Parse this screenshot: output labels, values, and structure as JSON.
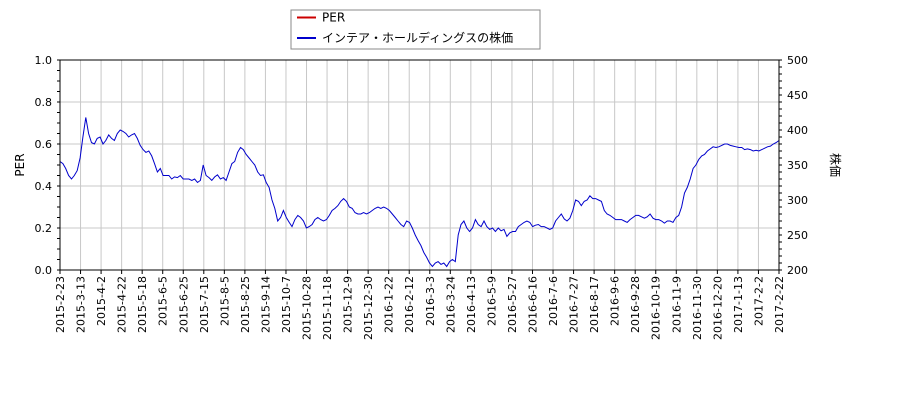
{
  "chart_data": {
    "type": "line",
    "colors": {
      "per": "#cc0000",
      "price": "#0000cc"
    },
    "legend_placement": "top-center",
    "grid": true,
    "y_left": {
      "label": "PER",
      "range": [
        0.0,
        1.0
      ],
      "ticks": [
        "0.0",
        "0.2",
        "0.4",
        "0.6",
        "0.8",
        "1.0"
      ]
    },
    "y_right": {
      "label": "株価",
      "range": [
        200,
        500
      ],
      "ticks": [
        "200",
        "250",
        "300",
        "350",
        "400",
        "450",
        "500"
      ]
    },
    "x_ticks": [
      "2015-2-23",
      "2015-3-13",
      "2015-4-2",
      "2015-4-22",
      "2015-5-18",
      "2015-6-5",
      "2015-6-25",
      "2015-7-15",
      "2015-8-5",
      "2015-8-25",
      "2015-9-14",
      "2015-10-7",
      "2015-10-28",
      "2015-11-18",
      "2015-12-9",
      "2015-12-30",
      "2016-1-22",
      "2016-2-12",
      "2016-3-3",
      "2016-3-24",
      "2016-4-13",
      "2016-5-9",
      "2016-5-27",
      "2016-6-16",
      "2016-7-6",
      "2016-7-27",
      "2016-8-17",
      "2016-9-6",
      "2016-9-28",
      "2016-10-19",
      "2016-11-9",
      "2016-11-30",
      "2016-12-20",
      "2017-1-13",
      "2017-2-2",
      "2017-2-22"
    ],
    "series": [
      {
        "name": "PER",
        "axis": "left",
        "values": []
      },
      {
        "name": "インテア・ホールディングスの株価",
        "axis": "right",
        "values": [
          355,
          352,
          345,
          335,
          330,
          335,
          342,
          360,
          390,
          418,
          395,
          382,
          380,
          388,
          390,
          380,
          385,
          393,
          388,
          385,
          395,
          400,
          398,
          395,
          390,
          393,
          395,
          388,
          378,
          372,
          368,
          370,
          363,
          352,
          340,
          345,
          335,
          335,
          335,
          330,
          333,
          332,
          335,
          330,
          330,
          330,
          328,
          330,
          325,
          328,
          350,
          335,
          332,
          328,
          333,
          336,
          330,
          332,
          328,
          340,
          352,
          355,
          368,
          375,
          372,
          365,
          360,
          355,
          350,
          340,
          335,
          336,
          325,
          318,
          300,
          288,
          270,
          275,
          285,
          275,
          268,
          262,
          272,
          278,
          275,
          270,
          260,
          262,
          265,
          272,
          275,
          272,
          270,
          272,
          278,
          285,
          288,
          292,
          298,
          302,
          298,
          290,
          288,
          282,
          280,
          280,
          282,
          280,
          282,
          285,
          288,
          290,
          288,
          290,
          288,
          285,
          280,
          275,
          270,
          265,
          262,
          270,
          268,
          260,
          250,
          242,
          235,
          225,
          218,
          210,
          205,
          210,
          212,
          208,
          210,
          205,
          212,
          215,
          212,
          250,
          265,
          270,
          260,
          255,
          260,
          272,
          265,
          262,
          270,
          262,
          258,
          260,
          255,
          260,
          256,
          258,
          248,
          253,
          255,
          255,
          262,
          265,
          268,
          270,
          268,
          262,
          264,
          265,
          262,
          262,
          260,
          258,
          260,
          270,
          275,
          280,
          273,
          270,
          274,
          285,
          300,
          298,
          292,
          298,
          300,
          306,
          302,
          302,
          300,
          298,
          285,
          280,
          278,
          275,
          272,
          272,
          272,
          270,
          268,
          272,
          275,
          278,
          278,
          276,
          274,
          276,
          280,
          274,
          272,
          272,
          270,
          267,
          270,
          270,
          268,
          275,
          278,
          290,
          310,
          318,
          330,
          345,
          350,
          358,
          363,
          365,
          370,
          373,
          376,
          375,
          376,
          378,
          380,
          380,
          378,
          377,
          376,
          375,
          375,
          372,
          373,
          372,
          370,
          371,
          370,
          372,
          374,
          376,
          377,
          380,
          382,
          385
        ]
      }
    ]
  },
  "legend": {
    "items": [
      {
        "label": "PER",
        "color": "#cc0000"
      },
      {
        "label": "インテア・ホールディングスの株価",
        "color": "#0000cc"
      }
    ]
  }
}
